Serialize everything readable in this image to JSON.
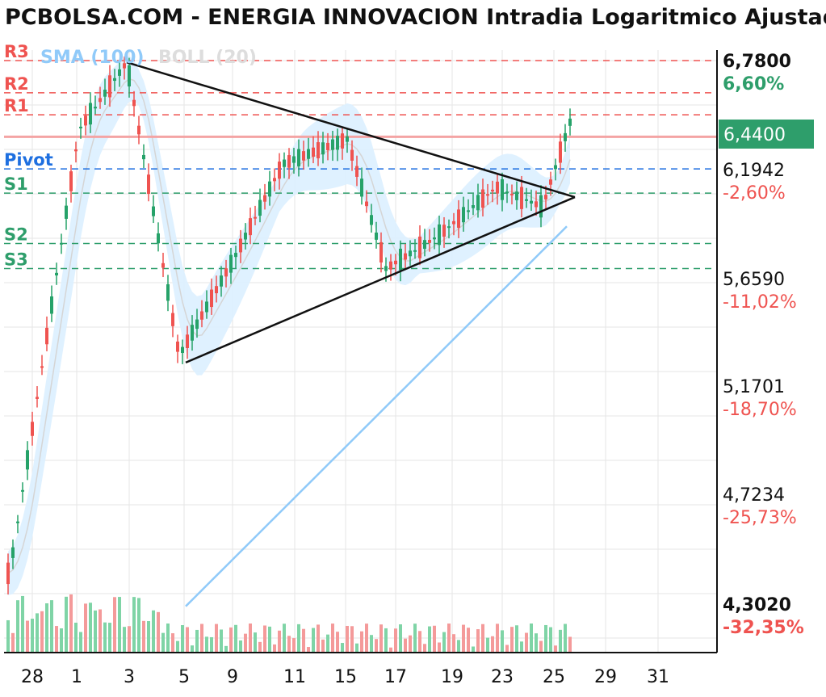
{
  "title": "PCBOLSA.COM - ENERGIA INNOVACION Intradia Logaritmico Ajustado a",
  "legend": [
    {
      "text": "SMA (100)",
      "color": "#90caf9"
    },
    {
      "text": "BOLL (20)",
      "color": "#dddddd"
    }
  ],
  "colors": {
    "up": "#26a269",
    "down": "#ef5350",
    "sma": "#90caf9",
    "boll_fill": "#dcefff",
    "pivot_blue": "#1e6fe0",
    "last_price_bg": "#2e9e6b"
  },
  "pivot_levels": [
    {
      "label": "R3",
      "value": 6.78,
      "color": "#ef5350",
      "style": "dashed"
    },
    {
      "label": "R2",
      "value": 6.6,
      "color": "#ef5350",
      "style": "dashed"
    },
    {
      "label": "R1",
      "value": 6.48,
      "color": "#ef5350",
      "style": "dashed"
    },
    {
      "label": "Pivot",
      "value": 6.1942,
      "color": "#1e6fe0",
      "style": "dashed"
    },
    {
      "label": "S1",
      "value": 6.07,
      "color": "#2e9e6b",
      "style": "dashed"
    },
    {
      "label": "S2",
      "value": 5.82,
      "color": "#2e9e6b",
      "style": "dashed"
    },
    {
      "label": "S3",
      "value": 5.7,
      "color": "#2e9e6b",
      "style": "dashed"
    }
  ],
  "chart_data": {
    "type": "candlestick",
    "title": "PCBOLSA.COM - ENERGIA INNOVACION Intradia Logaritmico Ajustado a",
    "scale": "log",
    "ylim": [
      4.302,
      6.78
    ],
    "x_tick_labels": [
      "28",
      "1",
      "3",
      "5",
      "9",
      "11",
      "15",
      "17",
      "19",
      "23",
      "25",
      "29",
      "31"
    ],
    "y_axis_labels": [
      {
        "price": "6,7800",
        "pct": "6,60%",
        "pct_color": "#2e9e6b",
        "bold": true
      },
      {
        "price": "6,1942",
        "pct": "-2,60%",
        "pct_color": "#ef5350",
        "bold": false
      },
      {
        "price": "5,6590",
        "pct": "-11,02%",
        "pct_color": "#ef5350",
        "bold": false
      },
      {
        "price": "5,1701",
        "pct": "-18,70%",
        "pct_color": "#ef5350",
        "bold": false
      },
      {
        "price": "4,7234",
        "pct": "-25,73%",
        "pct_color": "#ef5350",
        "bold": false
      },
      {
        "price": "4,3020",
        "pct": "-32,35%",
        "pct_color": "#ef5350",
        "bold": true
      }
    ],
    "last_price": {
      "label": "6,4400",
      "value": 6.44
    },
    "key_points": [
      {
        "session": "28",
        "price": 4.42
      },
      {
        "session": "1",
        "price": 6.4
      },
      {
        "session": "3",
        "price": 6.77
      },
      {
        "session": "5",
        "price": 5.3
      },
      {
        "session": "9",
        "price": 5.75
      },
      {
        "session": "11",
        "price": 6.22
      },
      {
        "session": "15",
        "price": 6.35
      },
      {
        "session": "17",
        "price": 5.7
      },
      {
        "session": "19",
        "price": 5.85
      },
      {
        "session": "23",
        "price": 6.1
      },
      {
        "session": "25",
        "price": 6.0
      },
      {
        "session": "26",
        "price": 6.44
      }
    ],
    "trendlines": [
      {
        "from": {
          "session": "3",
          "price": 6.77
        },
        "to": {
          "session": "26",
          "price": 6.05
        }
      },
      {
        "from": {
          "session": "5",
          "price": 5.27
        },
        "to": {
          "session": "26",
          "price": 6.05
        }
      }
    ],
    "indicators": [
      "SMA (100)",
      "BOLL (20)"
    ]
  }
}
